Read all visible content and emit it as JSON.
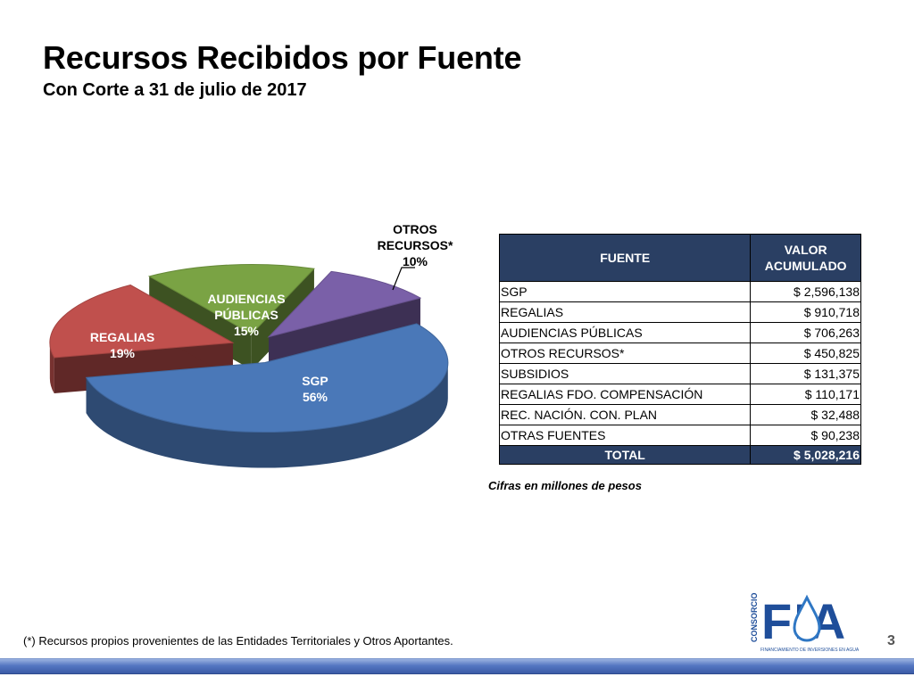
{
  "header": {
    "title": "Recursos Recibidos por Fuente",
    "subtitle": "Con Corte a 31 de julio de 2017"
  },
  "chart_data": {
    "type": "pie",
    "title": "",
    "slices": [
      {
        "name": "SGP",
        "label_lines": [
          "SGP",
          "56%"
        ],
        "value": 56,
        "color": "#4a78b8"
      },
      {
        "name": "REGALIAS",
        "label_lines": [
          "REGALIAS",
          "19%"
        ],
        "value": 19,
        "color": "#c0504d"
      },
      {
        "name": "AUDIENCIAS PÚBLICAS",
        "label_lines": [
          "AUDIENCIAS",
          "PÚBLICAS",
          "15%"
        ],
        "value": 15,
        "color": "#7aa344"
      },
      {
        "name": "OTROS RECURSOS*",
        "label_lines": [
          "OTROS",
          "RECURSOS*",
          "10%"
        ],
        "value": 10,
        "color": "#7a60a8"
      }
    ]
  },
  "table": {
    "headers": {
      "source": "FUENTE",
      "value_line1": "VALOR",
      "value_line2": "ACUMULADO"
    },
    "rows": [
      {
        "source": "SGP",
        "value": "$ 2,596,138"
      },
      {
        "source": "REGALIAS",
        "value": "$ 910,718"
      },
      {
        "source": "AUDIENCIAS PÚBLICAS",
        "value": "$ 706,263"
      },
      {
        "source": "OTROS RECURSOS*",
        "value": "$ 450,825"
      },
      {
        "source": "SUBSIDIOS",
        "value": "$ 131,375"
      },
      {
        "source": "REGALIAS FDO. COMPENSACIÓN",
        "value": "$ 110,171"
      },
      {
        "source": "REC. NACIÓN.  CON. PLAN",
        "value": "$ 32,488"
      },
      {
        "source": "OTRAS FUENTES",
        "value": "$ 90,238"
      }
    ],
    "total": {
      "label": "TOTAL",
      "value": "$ 5,028,216"
    }
  },
  "units_note": "Cifras en millones de pesos",
  "footnote": "(*) Recursos propios provenientes de  las Entidades Territoriales y Otros Aportantes.",
  "page_number": "3",
  "logo": {
    "vertical_text": "CONSORCIO",
    "letters": "FIA",
    "tagline": "FINANCIAMIENTO DE INVERSIONES EN AGUA",
    "color": "#1f4e9a"
  }
}
